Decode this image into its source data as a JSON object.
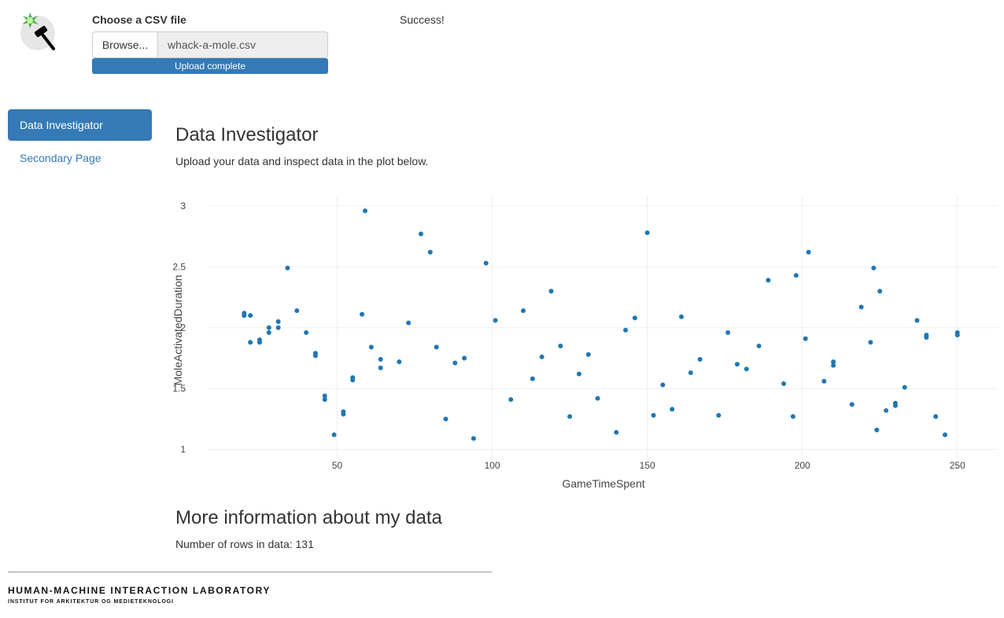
{
  "header": {
    "logo_icon": "hammer-spark-icon",
    "file_input_label": "Choose a CSV file",
    "browse_label": "Browse...",
    "file_name": "whack-a-mole.csv",
    "progress_label": "Upload complete",
    "progress_fraction": 1.0,
    "status_text": "Success!"
  },
  "nav": {
    "items": [
      {
        "label": "Data Investigator",
        "active": true
      },
      {
        "label": "Secondary Page",
        "active": false
      }
    ]
  },
  "main": {
    "title": "Data Investigator",
    "subtitle": "Upload your data and inspect data in the plot below.",
    "more_title": "More information about my data",
    "rows_text": "Number of rows in data: 131"
  },
  "footer": {
    "lab_name": "HUMAN-MACHINE INTERACTION LABORATORY",
    "lab_sub": "INSTITUT FOR ARKITEKTUR OG MEDIETEKNOLOGI"
  },
  "colors": {
    "accent": "#337ab7",
    "point": "#1f77b4",
    "grid": "#eeeeee"
  },
  "chart_data": {
    "type": "scatter",
    "xlabel": "GameTimeSpent",
    "ylabel": "MoleActivatedDuration",
    "xlim": [
      8,
      263
    ],
    "ylim": [
      0.92,
      3.09
    ],
    "xticks": [
      50,
      100,
      150,
      200,
      250
    ],
    "yticks": [
      1,
      1.5,
      2,
      2.5,
      3
    ],
    "grid": true,
    "legend": "none",
    "x": [
      20,
      20,
      22,
      22,
      25,
      25,
      28,
      28,
      31,
      31,
      34,
      37,
      40,
      43,
      43,
      46,
      46,
      49,
      52,
      52,
      55,
      55,
      58,
      59,
      61,
      64,
      64,
      70,
      73,
      77,
      80,
      82,
      85,
      88,
      91,
      94,
      98,
      101,
      106,
      110,
      113,
      116,
      119,
      122,
      125,
      128,
      131,
      134,
      140,
      143,
      146,
      150,
      152,
      155,
      158,
      161,
      164,
      167,
      173,
      176,
      179,
      182,
      186,
      189,
      194,
      197,
      198,
      201,
      202,
      207,
      210,
      210,
      216,
      219,
      222,
      223,
      224,
      225,
      227,
      230,
      230,
      233,
      237,
      240,
      240,
      243,
      246,
      250,
      250
    ],
    "y": [
      2.12,
      2.1,
      1.88,
      2.1,
      1.9,
      1.88,
      2.0,
      1.96,
      2.05,
      2.0,
      2.49,
      2.14,
      1.96,
      1.79,
      1.77,
      1.44,
      1.41,
      1.12,
      1.31,
      1.29,
      1.59,
      1.57,
      2.11,
      2.96,
      1.84,
      1.74,
      1.67,
      1.72,
      2.04,
      2.77,
      2.62,
      1.84,
      1.25,
      1.71,
      1.75,
      1.09,
      2.53,
      2.06,
      1.41,
      2.14,
      1.58,
      1.76,
      2.3,
      1.85,
      1.27,
      1.62,
      1.78,
      1.42,
      1.14,
      1.98,
      2.08,
      2.78,
      1.28,
      1.53,
      1.33,
      2.09,
      1.63,
      1.74,
      1.28,
      1.96,
      1.7,
      1.66,
      1.85,
      2.39,
      1.54,
      1.27,
      2.43,
      1.91,
      2.62,
      1.56,
      1.72,
      1.69,
      1.37,
      2.17,
      1.88,
      2.49,
      1.16,
      2.3,
      1.32,
      1.38,
      1.36,
      1.51,
      2.06,
      1.94,
      1.92,
      1.27,
      1.12,
      1.96,
      1.94
    ]
  }
}
